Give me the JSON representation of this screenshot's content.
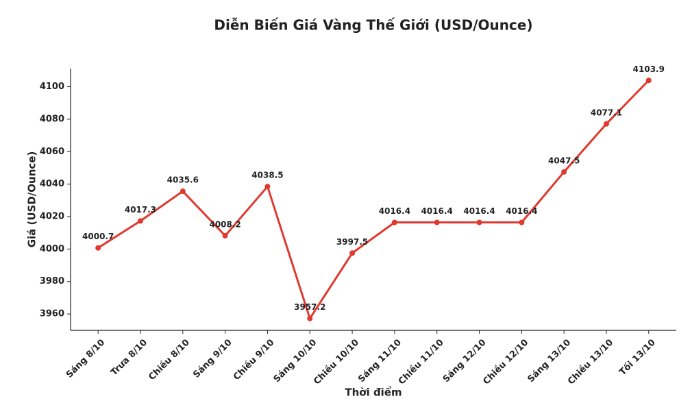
{
  "chart_data": {
    "type": "line",
    "title": "Diễn Biến Giá Vàng Thế Giới (USD/Ounce)",
    "x_label": "Thời điểm",
    "y_label": "Giá (USD/Ounce)",
    "categories": [
      "Sáng 8/10",
      "Trưa 8/10",
      "Chiều 8/10",
      "Sáng 9/10",
      "Chiều 9/10",
      "Sáng 10/10",
      "Chiều 10/10",
      "Sáng 11/10",
      "Chiều 11/10",
      "Sáng 12/10",
      "Chiều 12/10",
      "Sáng 13/10",
      "Chiều 13/10",
      "Tối 13/10"
    ],
    "values": [
      4000.7,
      4017.3,
      4035.6,
      4008.2,
      4038.5,
      3957.2,
      3997.5,
      4016.4,
      4016.4,
      4016.4,
      4016.4,
      4047.5,
      4077.1,
      4103.9
    ],
    "color": "#e0392f",
    "ylim": [
      3949.9,
      4111.2
    ],
    "yticks": [
      3960,
      3980,
      4000,
      4020,
      4040,
      4060,
      4080,
      4100
    ],
    "grid": false
  }
}
